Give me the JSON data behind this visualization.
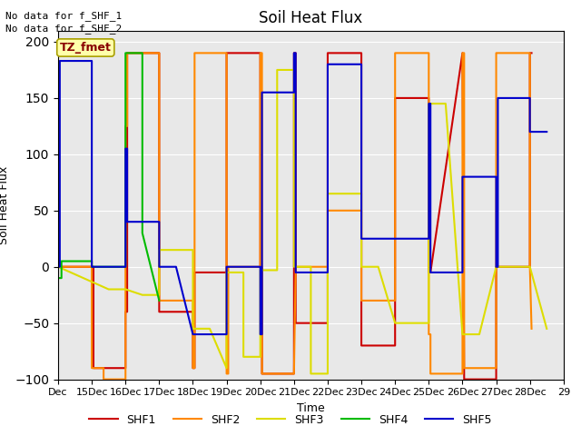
{
  "title": "Soil Heat Flux",
  "xlabel": "Time",
  "ylabel": "Soil Heat Flux",
  "ylim": [
    -100,
    210
  ],
  "annotations": [
    "No data for f_SHF_1",
    "No data for f_SHF_2"
  ],
  "legend_box_label": "TZ_fmet",
  "plot_bg": "#e8e8e8",
  "fig_bg": "#ffffff",
  "grid_color": "#ffffff",
  "x_tick_positions": [
    14,
    15,
    16,
    17,
    18,
    19,
    20,
    21,
    22,
    23,
    24,
    25,
    26,
    27,
    28,
    29
  ],
  "x_tick_labels": [
    "Dec",
    "15Dec",
    "16Dec",
    "17Dec",
    "18Dec",
    "19Dec",
    "20Dec",
    "21Dec",
    "22Dec",
    "23Dec",
    "24Dec",
    "25Dec",
    "26Dec",
    "27Dec",
    "28Dec",
    "29"
  ],
  "y_tick_positions": [
    -100,
    -50,
    0,
    50,
    100,
    150,
    200
  ],
  "series": {
    "SHF1": {
      "color": "#cc0000",
      "x": [
        14.0,
        15.05,
        15.05,
        16.0,
        16.0,
        16.05,
        16.05,
        17.0,
        17.0,
        18.0,
        18.0,
        18.05,
        18.05,
        19.0,
        19.0,
        19.05,
        20.0,
        20.0,
        20.05,
        20.05,
        21.0,
        21.0,
        21.05,
        21.05,
        22.0,
        22.0,
        22.05,
        23.0,
        23.0,
        24.0,
        24.0,
        24.05,
        25.0,
        25.0,
        25.05,
        26.0,
        26.0,
        26.05,
        26.05,
        27.0,
        27.0,
        28.0,
        28.0,
        28.05
      ],
      "y": [
        0,
        0,
        -90,
        -90,
        -40,
        -40,
        190,
        190,
        -40,
        -40,
        -90,
        -90,
        -5,
        -5,
        190,
        190,
        190,
        0,
        0,
        -95,
        -95,
        190,
        190,
        -50,
        -50,
        190,
        190,
        190,
        -70,
        -70,
        150,
        150,
        150,
        -5,
        -5,
        190,
        190,
        -100,
        -100,
        -100,
        0,
        0,
        190,
        190
      ]
    },
    "SHF2": {
      "color": "#ff8800",
      "x": [
        14.0,
        15.0,
        15.0,
        15.35,
        15.35,
        16.0,
        16.0,
        16.05,
        16.05,
        17.0,
        17.0,
        18.0,
        18.0,
        18.05,
        18.05,
        19.0,
        19.0,
        19.05,
        19.05,
        20.0,
        20.0,
        20.05,
        20.05,
        21.0,
        21.0,
        21.05,
        22.0,
        22.0,
        22.05,
        23.0,
        23.0,
        23.05,
        24.0,
        24.0,
        24.05,
        25.0,
        25.0,
        25.05,
        25.05,
        26.0,
        26.0,
        26.05,
        26.05,
        27.0,
        27.0,
        27.05,
        28.0,
        28.0,
        28.05
      ],
      "y": [
        0,
        0,
        -90,
        -90,
        -100,
        -100,
        125,
        125,
        190,
        190,
        -30,
        -30,
        -90,
        -90,
        190,
        190,
        -95,
        -95,
        0,
        0,
        190,
        190,
        -95,
        -95,
        -95,
        0,
        0,
        50,
        50,
        50,
        -30,
        -30,
        -30,
        190,
        190,
        190,
        -60,
        -60,
        -95,
        -95,
        190,
        190,
        -90,
        -90,
        190,
        190,
        190,
        0,
        -55
      ]
    },
    "SHF3": {
      "color": "#dddd00",
      "x": [
        14.0,
        15.5,
        16.0,
        16.0,
        16.5,
        17.0,
        17.0,
        17.5,
        18.0,
        18.0,
        18.5,
        19.0,
        19.0,
        19.5,
        19.5,
        20.0,
        20.0,
        20.5,
        20.5,
        21.0,
        21.0,
        21.5,
        21.5,
        22.0,
        22.0,
        22.5,
        23.0,
        23.0,
        23.5,
        24.0,
        24.5,
        25.0,
        25.0,
        25.5,
        26.0,
        26.5,
        27.0,
        28.0,
        28.5
      ],
      "y": [
        0,
        -20,
        -20,
        -20,
        -25,
        -25,
        15,
        15,
        15,
        -55,
        -55,
        -90,
        -5,
        -5,
        -80,
        -80,
        -3,
        -3,
        175,
        175,
        0,
        0,
        -95,
        -95,
        65,
        65,
        65,
        0,
        0,
        -50,
        -50,
        -50,
        145,
        145,
        -60,
        -60,
        0,
        0,
        -55
      ]
    },
    "SHF4": {
      "color": "#00bb00",
      "x": [
        14.0,
        14.1,
        14.1,
        15.0,
        15.0,
        16.0,
        16.0,
        16.5,
        16.5,
        17.0
      ],
      "y": [
        -10,
        -10,
        5,
        5,
        0,
        0,
        190,
        190,
        30,
        -30
      ]
    },
    "SHF5": {
      "color": "#0000cc",
      "x": [
        14.0,
        14.05,
        14.05,
        14.5,
        15.0,
        15.0,
        16.0,
        16.0,
        16.05,
        16.05,
        16.5,
        17.0,
        17.0,
        17.5,
        18.0,
        19.0,
        19.0,
        19.5,
        19.5,
        20.0,
        20.0,
        20.05,
        20.05,
        21.0,
        21.0,
        21.05,
        21.05,
        22.0,
        22.0,
        22.5,
        23.0,
        23.0,
        24.0,
        25.0,
        25.0,
        25.05,
        25.05,
        26.0,
        26.0,
        27.0,
        27.0,
        27.05,
        27.05,
        27.5,
        28.0,
        28.0,
        28.5
      ],
      "y": [
        0,
        0,
        183,
        183,
        183,
        0,
        0,
        105,
        105,
        40,
        40,
        40,
        0,
        0,
        -60,
        -60,
        0,
        0,
        0,
        0,
        -60,
        -60,
        155,
        155,
        190,
        190,
        -5,
        -5,
        180,
        180,
        180,
        25,
        25,
        25,
        145,
        145,
        -5,
        -5,
        80,
        80,
        0,
        0,
        150,
        150,
        150,
        120,
        120
      ]
    }
  }
}
